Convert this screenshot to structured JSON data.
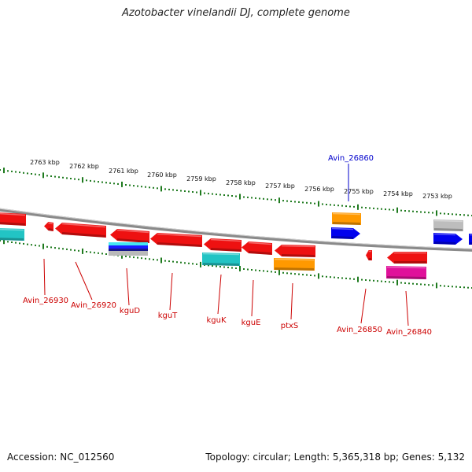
{
  "title": "Azotobacter vinelandii DJ, complete genome",
  "footer": {
    "accession": "Accession: NC_012560",
    "summary": "Topology: circular; Length: 5,365,318 bp; Genes: 5,132"
  },
  "colors": {
    "backbone": "#8a8a8a",
    "tick": "#1e7a1e",
    "label_red": "#cc0000",
    "label_blue": "#0000cc"
  },
  "scale": {
    "ticks": [
      "2763 kbp",
      "2762 kbp",
      "2761 kbp",
      "2760 kbp",
      "2759 kbp",
      "2758 kbp",
      "2757 kbp",
      "2756 kbp",
      "2755 kbp",
      "2754 kbp",
      "2753 kbp"
    ]
  },
  "gene_labels": [
    "Avin_26860",
    "Avin_26930",
    "Avin_26920",
    "kguD",
    "kguT",
    "kguK",
    "kguE",
    "ptxS",
    "Avin_26850",
    "Avin_26840"
  ],
  "feature_colors": {
    "cds": "#ee1111",
    "teal": "#22c4c4",
    "orange": "#ff9900",
    "blue": "#0000ee",
    "grey": "#bdbdbd",
    "magenta": "#e0109a"
  }
}
